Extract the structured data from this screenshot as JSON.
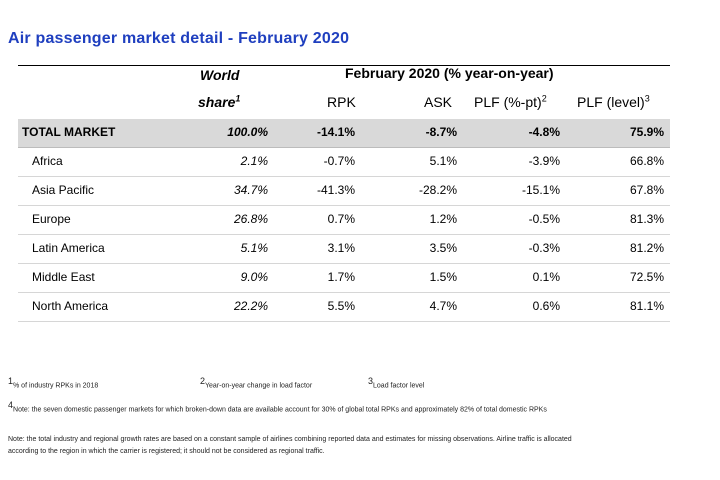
{
  "title": "Air passenger market detail - February 2020",
  "header": {
    "world": "World",
    "share": "share",
    "share_sup": "1",
    "period": "February 2020 (% year-on-year)",
    "rpk": "RPK",
    "ask": "ASK",
    "plf_pt": "PLF (%-pt)",
    "plf_pt_sup": "2",
    "plf_level": "PLF (level)",
    "plf_level_sup": "3"
  },
  "rows": [
    {
      "region": "TOTAL MARKET",
      "share": "100.0%",
      "rpk": "-14.1%",
      "ask": "-8.7%",
      "plf_pt": "-4.8%",
      "plf_level": "75.9%"
    },
    {
      "region": "Africa",
      "share": "2.1%",
      "rpk": "-0.7%",
      "ask": "5.1%",
      "plf_pt": "-3.9%",
      "plf_level": "66.8%"
    },
    {
      "region": "Asia Pacific",
      "share": "34.7%",
      "rpk": "-41.3%",
      "ask": "-28.2%",
      "plf_pt": "-15.1%",
      "plf_level": "67.8%"
    },
    {
      "region": "Europe",
      "share": "26.8%",
      "rpk": "0.7%",
      "ask": "1.2%",
      "plf_pt": "-0.5%",
      "plf_level": "81.3%"
    },
    {
      "region": "Latin America",
      "share": "5.1%",
      "rpk": "3.1%",
      "ask": "3.5%",
      "plf_pt": "-0.3%",
      "plf_level": "81.2%"
    },
    {
      "region": "Middle East",
      "share": "9.0%",
      "rpk": "1.7%",
      "ask": "1.5%",
      "plf_pt": "0.1%",
      "plf_level": "72.5%"
    },
    {
      "region": "North America",
      "share": "22.2%",
      "rpk": "5.5%",
      "ask": "4.7%",
      "plf_pt": "0.6%",
      "plf_level": "81.1%"
    }
  ],
  "footnotes": {
    "n1": "% of industry RPKs in 2018",
    "n2": "Year-on-year change in load factor",
    "n3": "Load factor level",
    "n4": "Note: the seven domestic passenger markets for which broken-down data are available account for 30% of global total RPKs and approximately 82% of total domestic RPKs",
    "note_line1": "Note: the total industry and regional growth rates are based on a constant sample of airlines combining reported data and estimates for missing observations. Airline traffic is allocated",
    "note_line2": "according to the region in which the carrier is registered; it should not be considered as regional traffic."
  }
}
